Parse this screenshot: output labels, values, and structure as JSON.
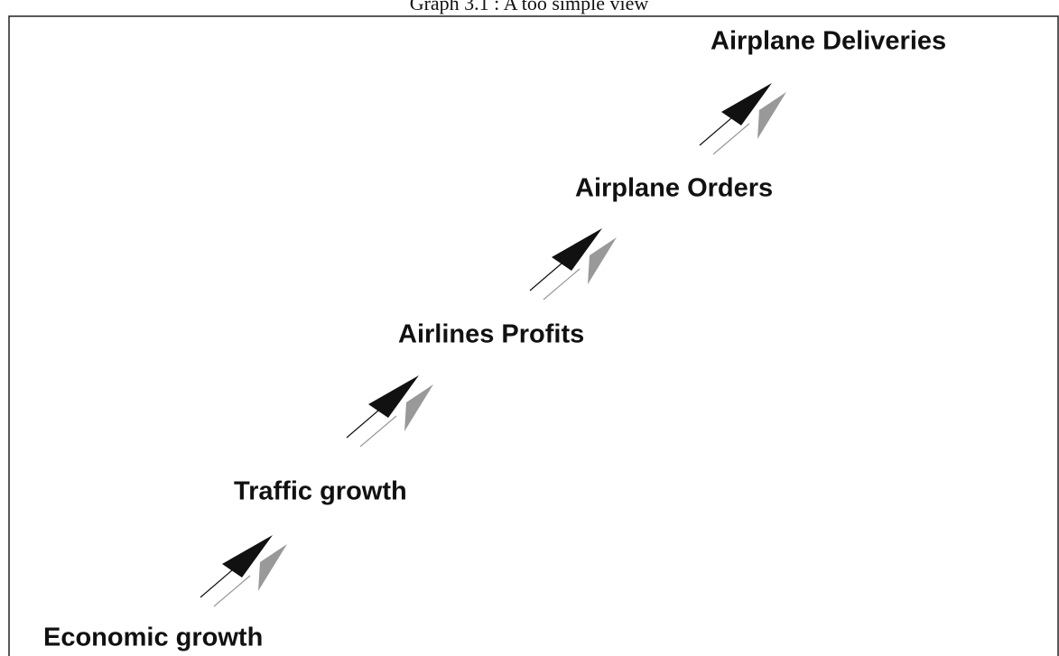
{
  "title": "Graph 3.1 : A too simple view",
  "nodes": [
    {
      "label": "Economic growth"
    },
    {
      "label": "Traffic growth"
    },
    {
      "label": "Airlines Profits"
    },
    {
      "label": "Airplane Orders"
    },
    {
      "label": "Airplane Deliveries"
    }
  ]
}
